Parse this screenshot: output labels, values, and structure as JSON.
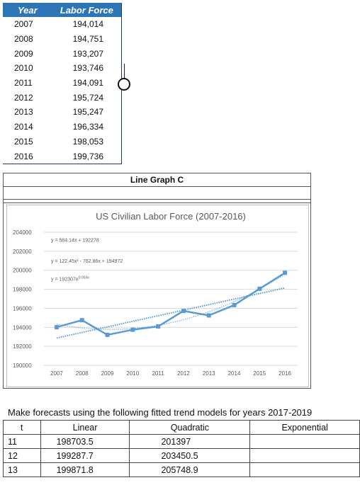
{
  "labor_table": {
    "headers": {
      "year": "Year",
      "force": "Labor Force"
    },
    "rows": [
      {
        "year": "2007",
        "force": "194,014"
      },
      {
        "year": "2008",
        "force": "194,751"
      },
      {
        "year": "2009",
        "force": "193,207"
      },
      {
        "year": "2010",
        "force": "193,746"
      },
      {
        "year": "2011",
        "force": "194,091"
      },
      {
        "year": "2012",
        "force": "195,724"
      },
      {
        "year": "2013",
        "force": "195,247"
      },
      {
        "year": "2014",
        "force": "196,334"
      },
      {
        "year": "2015",
        "force": "198,053"
      },
      {
        "year": "2016",
        "force": "199,736"
      }
    ]
  },
  "graph_label": "Line Graph C",
  "chart_data": {
    "type": "line",
    "title": "US Civilian Labor Force (2007-2016)",
    "x": [
      "2007",
      "2008",
      "2009",
      "2010",
      "2011",
      "2012",
      "2013",
      "2014",
      "2015",
      "2016"
    ],
    "series": [
      {
        "values": [
          194014,
          194751,
          193207,
          193746,
          194091,
          195724,
          195247,
          196334,
          198053,
          199736
        ]
      }
    ],
    "ylim": [
      190000,
      204000
    ],
    "yticks": [
      190000,
      192000,
      194000,
      196000,
      198000,
      200000,
      202000,
      204000
    ],
    "trend_equations": [
      {
        "text": "y = 584.14x + 192278"
      },
      {
        "text": "y = 122.45x² - 762.86x + 194972"
      },
      {
        "text": "y = 192307e",
        "sup": "0.003x"
      }
    ],
    "colors": {
      "series": "#5b9bd5",
      "trend": "#5b9bd5",
      "grid": "#d9d9d9"
    },
    "grid": true
  },
  "forecast": {
    "heading": "Make forecasts using the following fitted trend models for years 2017-2019",
    "headers": {
      "t": "t",
      "linear": "Linear",
      "quadratic": "Quadratic",
      "exponential": "Exponential"
    },
    "rows": [
      {
        "t": "11",
        "linear": "198703.5",
        "quadratic": "201397",
        "exponential": ""
      },
      {
        "t": "12",
        "linear": "199287.7",
        "quadratic": "203450.5",
        "exponential": ""
      },
      {
        "t": "13",
        "linear": "199871.8",
        "quadratic": "205748.9",
        "exponential": ""
      }
    ]
  }
}
